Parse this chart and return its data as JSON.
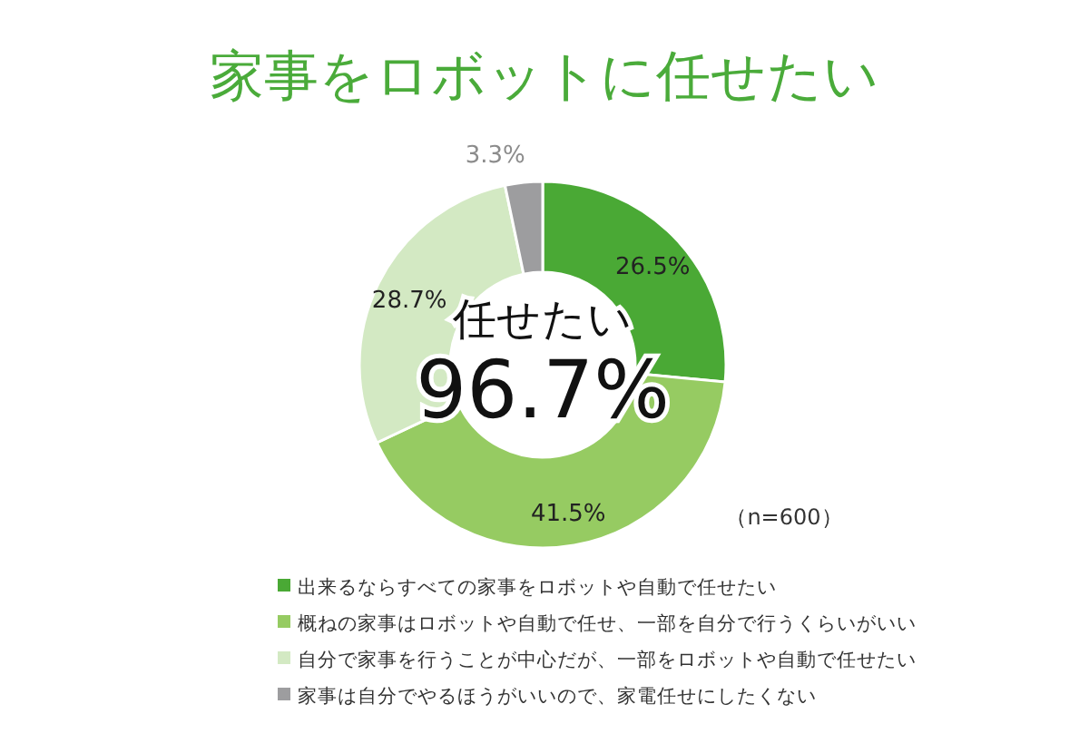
{
  "chart_data": {
    "type": "donut",
    "title": "家事をロボットに任せたい",
    "categories": [
      "出来るならすべての家事をロボットや自動で任せたい",
      "概ねの家事はロボットや自動で任せ、一部を自分で行うくらいがいい",
      "自分で家事を行うことが中心だが、一部をロボットや自動で任せたい",
      "家事は自分でやるほうがいいので、家電任せにしたくない"
    ],
    "values": [
      26.5,
      41.5,
      28.7,
      3.3
    ],
    "value_labels": [
      "26.5%",
      "41.5%",
      "28.7%",
      "3.3%"
    ],
    "colors": [
      "#4aa935",
      "#96cb62",
      "#d3e9c3",
      "#9d9d9f"
    ],
    "annotations": [
      "任せたい",
      "96.7%",
      "（n=600）"
    ],
    "legend": "bottom"
  }
}
